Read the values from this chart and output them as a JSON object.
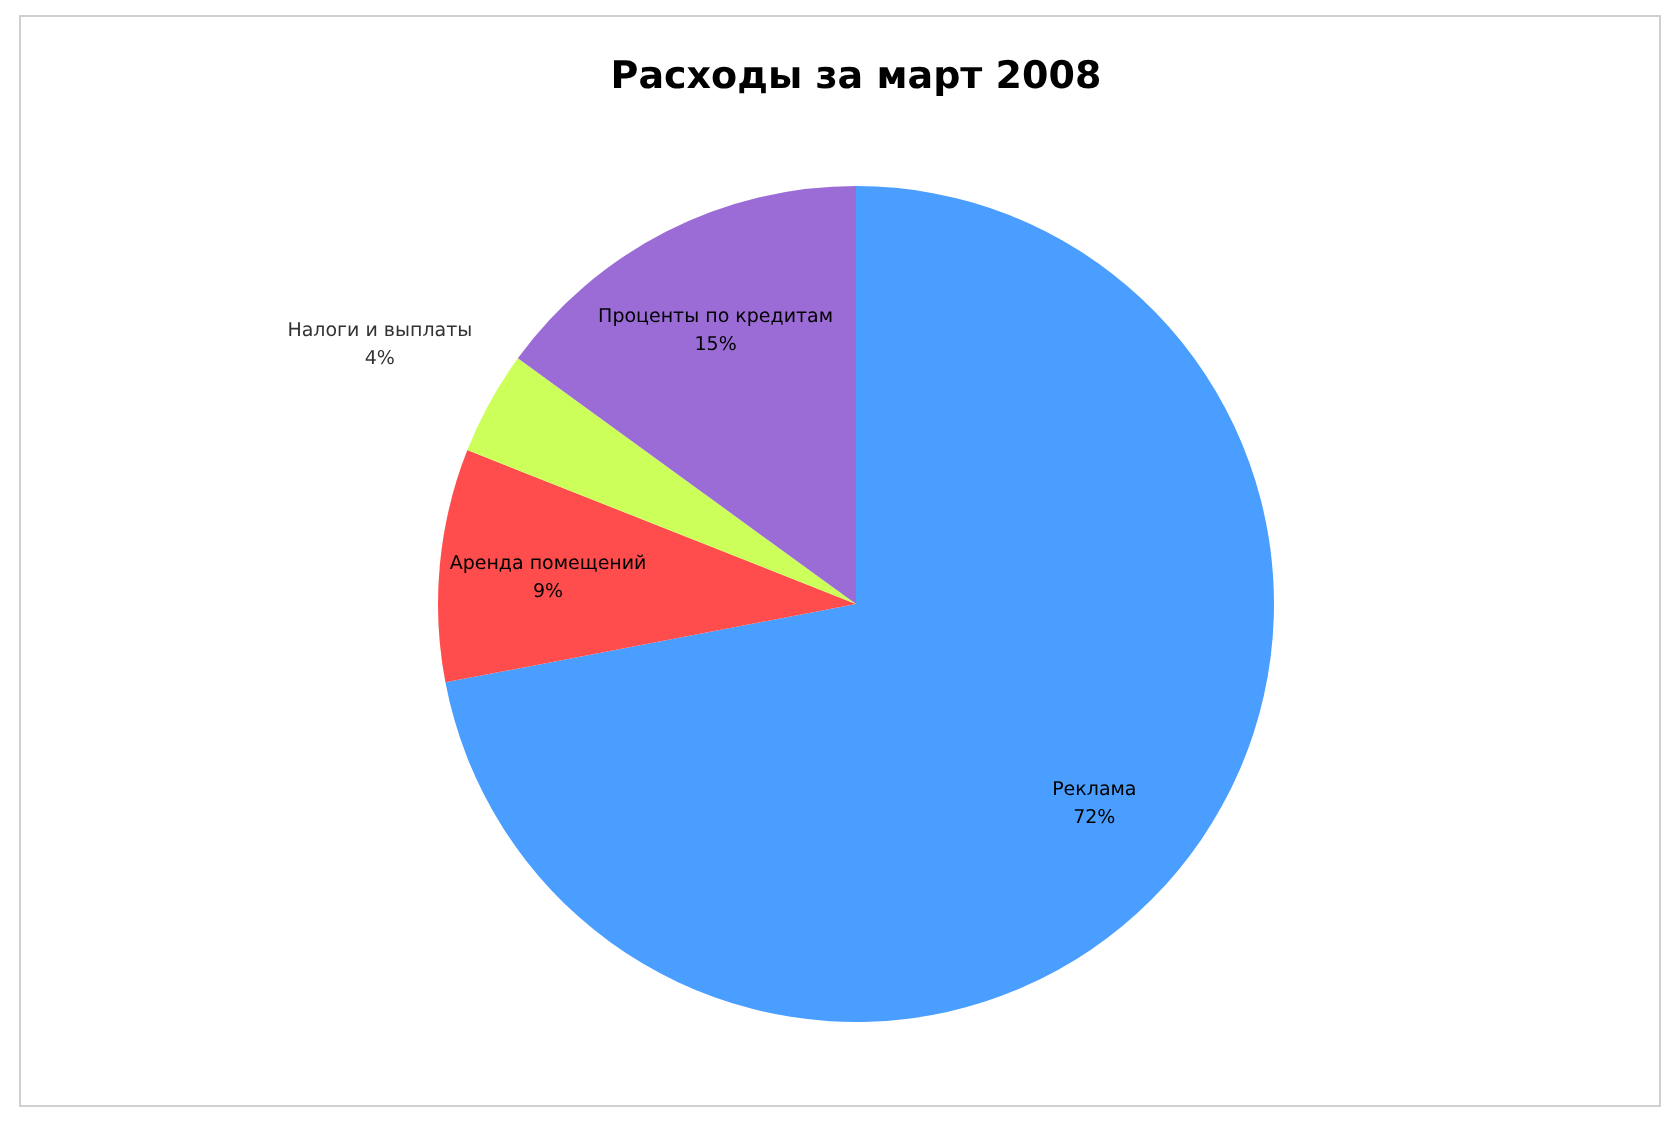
{
  "chart_data": {
    "type": "pie",
    "title": "Расходы за март 2008",
    "categories": [
      "Реклама",
      "Аренда помещений",
      "Налоги и выплаты",
      "Проценты по кредитам"
    ],
    "values": [
      72,
      9,
      4,
      15
    ],
    "colors": [
      "#4a9eff",
      "#ff4c4c",
      "#ccff5a",
      "#9b6cd6"
    ],
    "value_labels": [
      "72%",
      "9%",
      "4%",
      "15%"
    ]
  }
}
